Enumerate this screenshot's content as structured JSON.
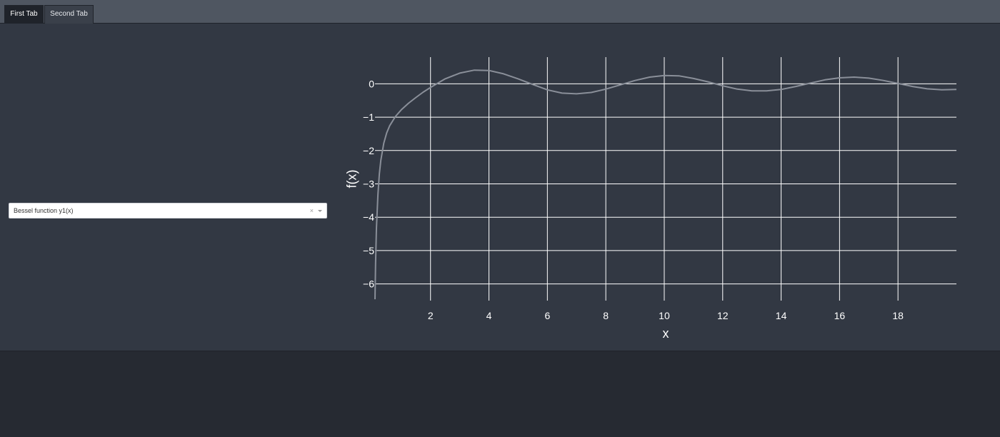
{
  "tabs": [
    {
      "label": "First Tab",
      "active": true
    },
    {
      "label": "Second Tab",
      "active": false
    }
  ],
  "dropdown": {
    "selected": "Bessel function y1(x)",
    "clear_glyph": "×"
  },
  "colors": {
    "tabbar": "#4f5661",
    "panel": "#323843",
    "page_background": "#262a32",
    "gridline": "#ffffff",
    "series_line": "#8a8f99"
  },
  "chart_data": {
    "type": "line",
    "title": "",
    "xlabel": "x",
    "ylabel": "f(x)",
    "xlim": [
      0.1,
      20
    ],
    "ylim": [
      -6.5,
      0.8
    ],
    "xticks": [
      2,
      4,
      6,
      8,
      10,
      12,
      14,
      16,
      18
    ],
    "yticks": [
      0,
      -1,
      -2,
      -3,
      -4,
      -5,
      -6
    ],
    "ytick_labels": [
      "0",
      "−1",
      "−2",
      "−3",
      "−4",
      "−5",
      "−6"
    ],
    "grid": true,
    "series": [
      {
        "x": [
          0.1,
          0.12,
          0.15,
          0.2,
          0.25,
          0.3,
          0.4,
          0.5,
          0.6,
          0.8,
          1.0,
          1.25,
          1.5,
          1.75,
          2.0,
          2.5,
          3.0,
          3.5,
          4.0,
          4.5,
          5.0,
          5.5,
          6.0,
          6.5,
          7.0,
          7.5,
          8.0,
          8.5,
          9.0,
          9.5,
          10.0,
          10.5,
          11.0,
          11.5,
          12.0,
          12.5,
          13.0,
          13.5,
          14.0,
          14.5,
          15.0,
          15.5,
          16.0,
          16.5,
          17.0,
          17.5,
          18.0,
          18.5,
          19.0,
          19.5,
          20.0
        ],
        "y": [
          -6.46,
          -5.4,
          -4.34,
          -3.32,
          -2.7,
          -2.29,
          -1.78,
          -1.47,
          -1.26,
          -0.98,
          -0.78,
          -0.58,
          -0.41,
          -0.25,
          -0.11,
          0.15,
          0.32,
          0.41,
          0.4,
          0.3,
          0.15,
          -0.02,
          -0.18,
          -0.28,
          -0.3,
          -0.26,
          -0.16,
          -0.03,
          0.1,
          0.2,
          0.25,
          0.24,
          0.16,
          0.06,
          -0.06,
          -0.16,
          -0.21,
          -0.21,
          -0.17,
          -0.08,
          0.02,
          0.12,
          0.18,
          0.2,
          0.17,
          0.1,
          0.01,
          -0.08,
          -0.15,
          -0.18,
          -0.17
        ]
      }
    ]
  }
}
